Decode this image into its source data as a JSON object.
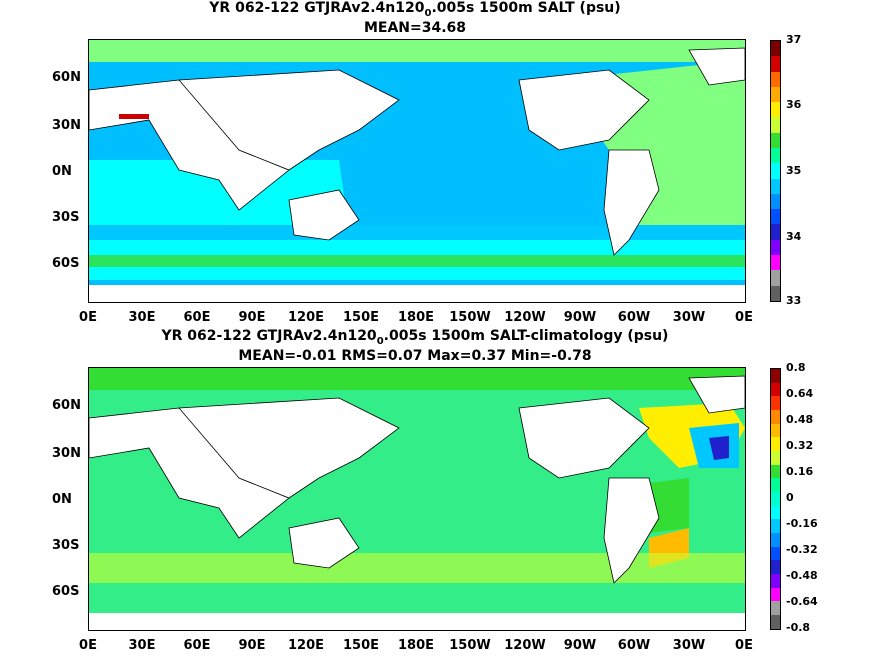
{
  "panel1": {
    "title_line1": "YR 062-122 GTJRAv2.4n120",
    "title_sub": "0",
    "title_line1_tail": ".005s 1500m SALT (psu)",
    "title_line2": "MEAN=34.68",
    "colorbar_labels": [
      "37",
      "36",
      "35",
      "34",
      "33"
    ],
    "colorbar_colors": [
      "#7a0000",
      "#d40000",
      "#ff6a00",
      "#ffaa00",
      "#ffee00",
      "#ccff33",
      "#33dd33",
      "#00ff99",
      "#00ffff",
      "#00c8ff",
      "#0090ff",
      "#0050ff",
      "#2020cc",
      "#8000ff",
      "#ff00ff",
      "#a0a0a0",
      "#606060"
    ]
  },
  "panel2": {
    "title_line1": "YR 062-122 GTJRAv2.4n120",
    "title_sub": "0",
    "title_line1_tail": ".005s 1500m SALT-climatology (psu)",
    "title_line2": "MEAN=-0.01   RMS=0.07   Max=0.37   Min=-0.78",
    "colorbar_labels": [
      "0.8",
      "0.64",
      "0.48",
      "0.32",
      "0.16",
      "0",
      "-0.16",
      "-0.32",
      "-0.48",
      "-0.64",
      "-0.8"
    ],
    "colorbar_colors": [
      "#8b0000",
      "#d40000",
      "#ff3300",
      "#ff8800",
      "#ffbb00",
      "#ffee00",
      "#ccff33",
      "#33dd33",
      "#00ff99",
      "#00ffcc",
      "#00ffff",
      "#00c8ff",
      "#0090ff",
      "#0050ff",
      "#2020cc",
      "#8000ff",
      "#ff00ff",
      "#a0a0a0",
      "#606060"
    ]
  },
  "axes": {
    "y_labels": [
      "60N",
      "30N",
      "0N",
      "30S",
      "60S"
    ],
    "x_labels": [
      "0E",
      "30E",
      "60E",
      "90E",
      "120E",
      "150E",
      "180E",
      "150W",
      "120W",
      "90W",
      "60W",
      "30W",
      "0E"
    ]
  },
  "colors": {
    "pacific_fill": "#00bfff",
    "atlantic_fill": "#80ff80",
    "indian_fill": "#00ffff",
    "southern_fill": "#00c8ff",
    "anomaly_base": "#33ee88",
    "land": "#ffffff"
  }
}
